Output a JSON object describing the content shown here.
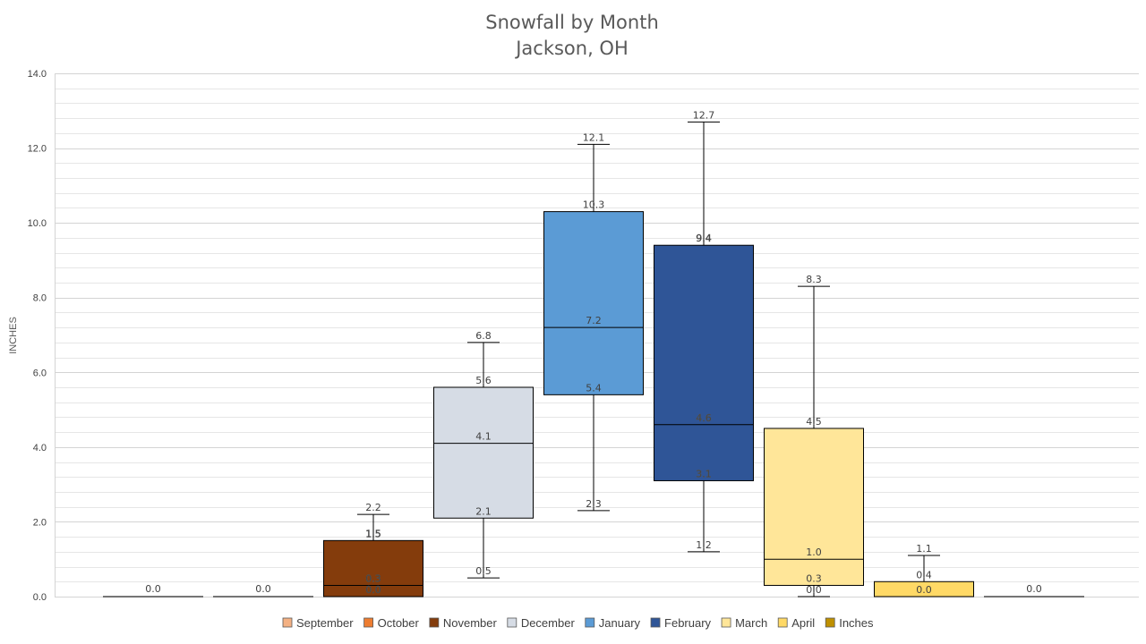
{
  "chart_data": {
    "type": "box",
    "title": "Snowfall by Month",
    "subtitle": "Jackson, OH",
    "ylabel": "INCHES",
    "ylim": [
      0,
      14
    ],
    "yticks": [
      "0.0",
      "2.0",
      "4.0",
      "6.0",
      "8.0",
      "10.0",
      "12.0",
      "14.0"
    ],
    "grid": true,
    "legend_position": "bottom",
    "categories": [
      "September",
      "October",
      "November",
      "December",
      "January",
      "February",
      "March",
      "April",
      "Inches"
    ],
    "series": [
      {
        "name": "September",
        "color": "#F4B183",
        "min": 0.0,
        "q1": 0.0,
        "median": 0.0,
        "q3": 0.0,
        "max": 0.0,
        "labels": [
          "0.0"
        ]
      },
      {
        "name": "October",
        "color": "#ED7D31",
        "min": 0.0,
        "q1": 0.0,
        "median": 0.0,
        "q3": 0.0,
        "max": 0.0,
        "labels": [
          "0.0"
        ]
      },
      {
        "name": "November",
        "color": "#843C0C",
        "min": 0.0,
        "q1": 0.0,
        "median": 0.3,
        "q3": 1.5,
        "max": 2.2,
        "labels": [
          "2.2",
          "1.5",
          "0.3",
          "0.0"
        ]
      },
      {
        "name": "December",
        "color": "#D6DCE5",
        "min": 0.5,
        "q1": 2.1,
        "median": 4.1,
        "q3": 5.6,
        "max": 6.8,
        "labels": [
          "6.8",
          "5.6",
          "4.1",
          "2.1",
          "0.5"
        ]
      },
      {
        "name": "January",
        "color": "#5B9BD5",
        "min": 2.3,
        "q1": 5.4,
        "median": 7.2,
        "q3": 10.3,
        "max": 12.1,
        "labels": [
          "12.1",
          "10.3",
          "7.2",
          "5.4",
          "2.3"
        ]
      },
      {
        "name": "February",
        "color": "#2F5597",
        "min": 1.2,
        "q1": 3.1,
        "median": 4.6,
        "q3": 9.4,
        "max": 12.7,
        "labels": [
          "12.7",
          "9.4",
          "4.6",
          "3.1",
          "1.2"
        ]
      },
      {
        "name": "March",
        "color": "#FFE699",
        "min": 0.0,
        "q1": 0.3,
        "median": 1.0,
        "q3": 4.5,
        "max": 8.3,
        "labels": [
          "8.3",
          "4.5",
          "1.0",
          "0.3",
          "0.0"
        ]
      },
      {
        "name": "April",
        "color": "#FFD966",
        "min": 0.0,
        "q1": 0.0,
        "median": 0.0,
        "q3": 0.4,
        "max": 1.1,
        "labels": [
          "1.1",
          "0.4",
          "0.0"
        ]
      },
      {
        "name": "Inches",
        "color": "#BF9000",
        "min": 0.0,
        "q1": 0.0,
        "median": 0.0,
        "q3": 0.0,
        "max": 0.0,
        "labels": [
          "0.0"
        ]
      }
    ]
  }
}
